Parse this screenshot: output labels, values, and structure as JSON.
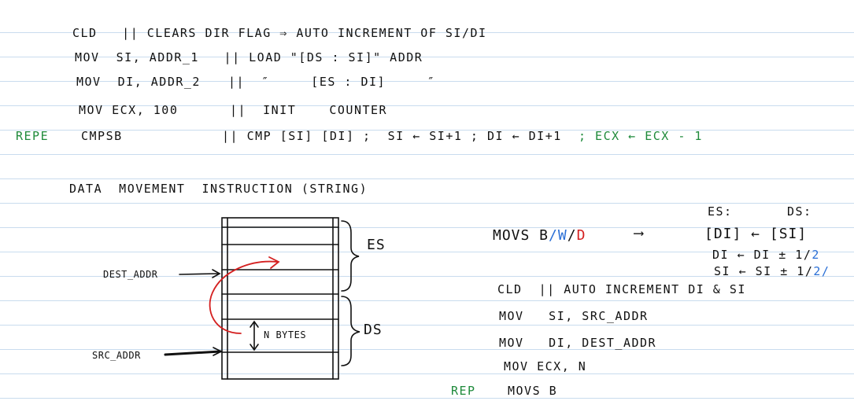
{
  "colors": {
    "ink": "#111111",
    "green": "#1e8a3a",
    "blue": "#2a6fd6",
    "red": "#d42020",
    "rule": "#c9dcee"
  },
  "block1": {
    "line1": "CLD   || CLEARS DIR FLAG ⇒ AUTO INCREMENT OF SI/DI",
    "line2": "MOV  SI, ADDR_1   || LOAD \"[DS : SI]\" ADDR",
    "line3_code": "MOV  DI, ADDR_2",
    "line3_comment": "||  ″     [ES : DI]     ″",
    "line4_code": "MOV ECX, 100",
    "line4_comment": "||  INIT    COUNTER",
    "line5_prefix": "REPE",
    "line5_code": "CMPSB",
    "line5_comment": "|| CMP [SI] [DI] ;  SI ← SI+1 ; DI ← DI+1",
    "line5_green": "; ECX ← ECX - 1"
  },
  "section_title": "DATA  MOVEMENT  INSTRUCTION (STRING)",
  "diagram": {
    "es_label": "ES",
    "ds_label": "DS",
    "dest_label": "DEST_ADDR",
    "src_label": "SRC_ADDR",
    "nbytes_label": "N BYTES"
  },
  "right": {
    "es_head": "ES:",
    "ds_head": "DS:",
    "movs_main": "MOVS B",
    "movs_sep1": "/",
    "movs_w": "W",
    "movs_sep2": "/",
    "movs_d": "D",
    "arrow": "⟶",
    "eq1": "[DI] ← [SI]",
    "eq2_main": "DI ← DI ± 1/",
    "eq2_blue": "2",
    "eq3_main": "SI ← SI ± 1/",
    "eq3_blue": "2/",
    "cld_line": "CLD  || AUTO INCREMENT DI & SI",
    "mov1": "MOV   SI, SRC_ADDR",
    "mov2": "MOV   DI, DEST_ADDR",
    "mov3": "MOV ECX, N",
    "rep_prefix": "REP",
    "rep_code": "MOVS B"
  }
}
